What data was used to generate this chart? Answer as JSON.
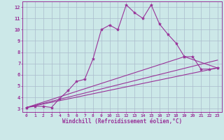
{
  "xlabel": "Windchill (Refroidissement éolien,°C)",
  "background_color": "#cce8e8",
  "grid_color": "#aabbcc",
  "line_color": "#993399",
  "xlim": [
    -0.5,
    23.5
  ],
  "ylim": [
    2.7,
    12.5
  ],
  "xticks": [
    0,
    1,
    2,
    3,
    4,
    5,
    6,
    7,
    8,
    9,
    10,
    11,
    12,
    13,
    14,
    15,
    16,
    17,
    18,
    19,
    20,
    21,
    22,
    23
  ],
  "yticks": [
    3,
    4,
    5,
    6,
    7,
    8,
    9,
    10,
    11,
    12
  ],
  "series": [
    {
      "x": [
        0,
        1,
        2,
        3,
        4,
        5,
        6,
        7,
        8,
        9,
        10,
        11,
        12,
        13,
        14,
        15,
        16,
        17,
        18,
        19,
        20,
        21,
        22,
        23
      ],
      "y": [
        3.1,
        3.2,
        3.2,
        3.1,
        3.9,
        4.6,
        5.4,
        5.6,
        7.4,
        10.0,
        10.4,
        10.0,
        12.2,
        11.5,
        11.0,
        12.2,
        10.5,
        9.6,
        8.8,
        7.6,
        7.6,
        6.5,
        6.5,
        6.6
      ],
      "marker": "*",
      "linewidth": 0.8
    },
    {
      "x": [
        0,
        23
      ],
      "y": [
        3.1,
        6.6
      ],
      "marker": null,
      "linewidth": 0.8
    },
    {
      "x": [
        0,
        23
      ],
      "y": [
        3.1,
        7.3
      ],
      "marker": null,
      "linewidth": 0.8
    },
    {
      "x": [
        0,
        19,
        23
      ],
      "y": [
        3.1,
        7.6,
        6.6
      ],
      "marker": "*",
      "linewidth": 0.8
    }
  ]
}
